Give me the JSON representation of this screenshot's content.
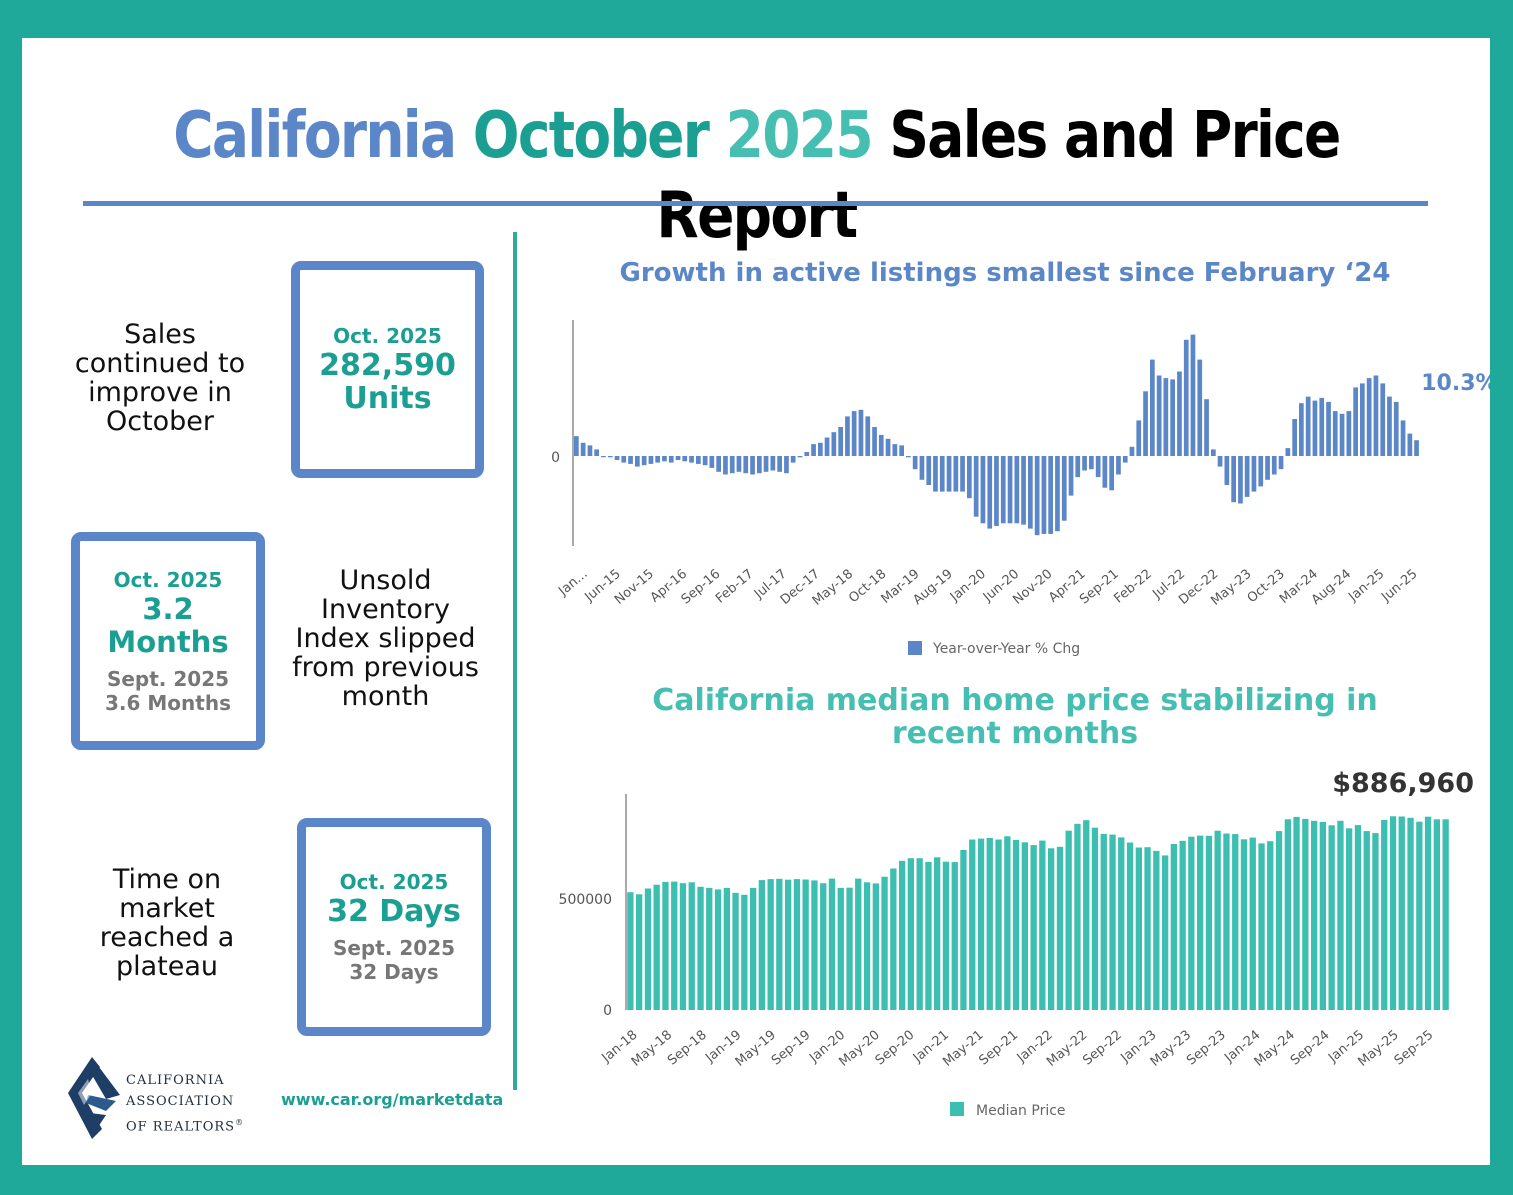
{
  "title": {
    "part1": "California",
    "part2": "October",
    "part3": "2025",
    "part4": "Sales and Price Report"
  },
  "colors": {
    "blue": "#5b86c8",
    "teal": "#1a9f92",
    "light_teal": "#46bfb2",
    "frame": "#1ea99b",
    "bar_teal": "#3cbfb0"
  },
  "sales": {
    "text": "Sales continued to improve in October",
    "date": "Oct. 2025",
    "value": "282,590",
    "unit": "Units"
  },
  "inventory": {
    "text": "Unsold Inventory Index slipped from previous month",
    "date": "Oct. 2025",
    "value": "3.2 Months",
    "prev_date": "Sept. 2025",
    "prev_value": "3.6 Months"
  },
  "time_on_market": {
    "text": "Time on market reached a plateau",
    "date": "Oct. 2025",
    "value": "32 Days",
    "prev_date": "Sept. 2025",
    "prev_value": "32 Days"
  },
  "footer": {
    "logo_line1": "CALIFORNIA",
    "logo_line2": "ASSOCIATION",
    "logo_line3": "OF REALTORS",
    "registered_mark": "®",
    "link": "www.car.org/marketdata"
  },
  "logo_icon": "car-logo-icon",
  "chart_data": [
    {
      "type": "bar",
      "title": "Growth in active listings smallest since February ‘24",
      "series_name": "Year-over-Year % Chg",
      "annotation": "10.3%",
      "ytick": "0",
      "xtick_labels": [
        "Jan...",
        "Jun-15",
        "Nov-15",
        "Apr-16",
        "Sep-16",
        "Feb-17",
        "Jul-17",
        "Dec-17",
        "May-18",
        "Oct-18",
        "Mar-19",
        "Aug-19",
        "Jan-20",
        "Jun-20",
        "Nov-20",
        "Apr-21",
        "Sep-21",
        "Feb-22",
        "Jul-22",
        "Dec-22",
        "May-23",
        "Oct-23",
        "Mar-24",
        "Aug-24",
        "Jan-25",
        "Jun-25"
      ],
      "ylim": [
        -60,
        100
      ],
      "values": [
        15,
        10,
        8,
        5,
        0,
        -1,
        -3,
        -5,
        -6,
        -8,
        -7,
        -6,
        -5,
        -4,
        -5,
        -3,
        -4,
        -5,
        -6,
        -7,
        -9,
        -12,
        -14,
        -13,
        -12,
        -13,
        -14,
        -13,
        -12,
        -11,
        -12,
        -13,
        -5,
        -1,
        3,
        9,
        10,
        14,
        18,
        22,
        30,
        34,
        35,
        30,
        22,
        16,
        13,
        9,
        8,
        -1,
        -10,
        -18,
        -22,
        -27,
        -27,
        -27,
        -27,
        -27,
        -32,
        -46,
        -51,
        -55,
        -53,
        -51,
        -51,
        -51,
        -52,
        -55,
        -60,
        -59,
        -59,
        -57,
        -49,
        -30,
        -16,
        -11,
        -10,
        -16,
        -24,
        -26,
        -14,
        -5,
        7,
        27,
        49,
        73,
        61,
        59,
        58,
        64,
        88,
        92,
        73,
        43,
        5,
        -8,
        -22,
        -35,
        -36,
        -31,
        -27,
        -23,
        -18,
        -14,
        -10,
        6,
        28,
        40,
        45,
        42,
        44,
        41,
        34,
        32,
        34,
        52,
        55,
        59,
        61,
        55,
        45,
        41,
        27,
        17,
        12
      ]
    },
    {
      "type": "bar",
      "title_line1": "California median home price stabilizing in",
      "title_line2": "recent months",
      "series_name": "Median Price",
      "annotation": "$886,960",
      "yticks": [
        "500000",
        "0"
      ],
      "xtick_labels": [
        "Jan-18",
        "May-18",
        "Sep-18",
        "Jan-19",
        "May-19",
        "Sep-19",
        "Jan-20",
        "May-20",
        "Sep-20",
        "Jan-21",
        "May-21",
        "Sep-21",
        "Jan-22",
        "May-22",
        "Sep-22",
        "Jan-23",
        "May-23",
        "Sep-23",
        "Jan-24",
        "May-24",
        "Sep-24",
        "Jan-25",
        "May-25",
        "Sep-25"
      ],
      "ylim": [
        0,
        1000000
      ],
      "values": [
        548000,
        538000,
        565000,
        583000,
        596000,
        597000,
        590000,
        594000,
        573000,
        568000,
        561000,
        568000,
        545000,
        536000,
        568000,
        604000,
        609000,
        610000,
        606000,
        609000,
        607000,
        603000,
        590000,
        611000,
        568000,
        569000,
        611000,
        594000,
        589000,
        620000,
        658000,
        694000,
        706000,
        706000,
        689000,
        710000,
        690000,
        688000,
        744000,
        793000,
        797000,
        800000,
        793000,
        808000,
        791000,
        780000,
        767000,
        788000,
        752000,
        759000,
        834000,
        866000,
        883000,
        848000,
        819000,
        816000,
        803000,
        779000,
        756000,
        757000,
        740000,
        719000,
        772000,
        787000,
        806000,
        811000,
        810000,
        834000,
        821000,
        818000,
        794000,
        802000,
        775000,
        785000,
        832000,
        887000,
        898000,
        889000,
        880000,
        875000,
        859000,
        880000,
        845000,
        860000,
        832000,
        823000,
        884000,
        901000,
        900000,
        894000,
        876000,
        899000,
        887000,
        887000
      ]
    }
  ]
}
